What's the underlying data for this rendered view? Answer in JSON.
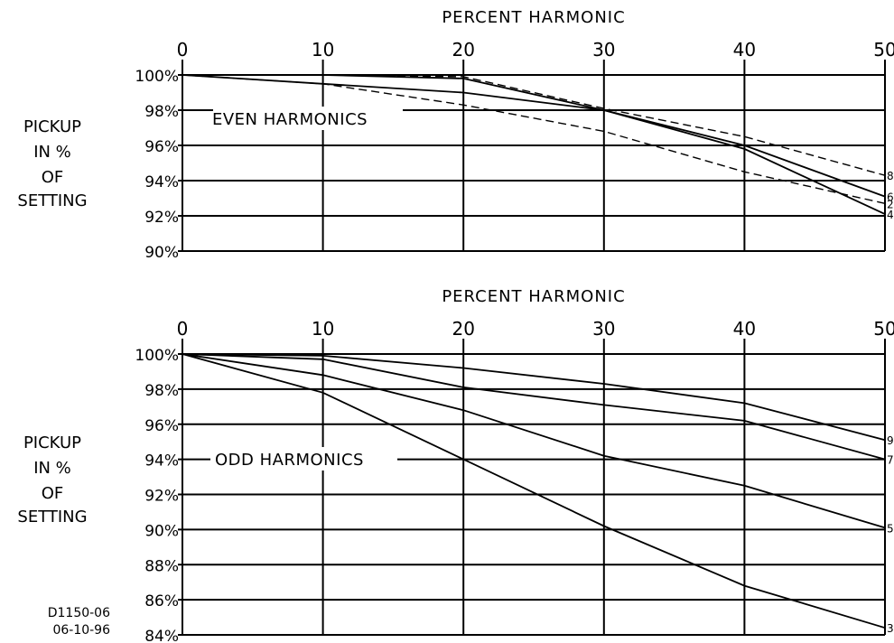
{
  "chart_data": [
    {
      "type": "line",
      "title": "EVEN HARMONICS",
      "xlabel": "PERCENT HARMONIC",
      "ylabel": "PICKUP IN % OF SETTING",
      "ylabel_lines": [
        "PICKUP",
        "IN %",
        "OF",
        "SETTING"
      ],
      "x_ticks": [
        0,
        10,
        20,
        30,
        40,
        50
      ],
      "y_ticks": [
        100,
        98,
        96,
        94,
        92,
        90
      ],
      "y_tick_labels": [
        "100%",
        "98%",
        "96%",
        "94%",
        "92%",
        "90%"
      ],
      "xlim": [
        0,
        50
      ],
      "ylim": [
        90,
        100
      ],
      "grid": true,
      "series": [
        {
          "name": "2",
          "style": "dashed",
          "x": [
            0,
            10,
            20,
            30,
            40,
            50
          ],
          "y": [
            100,
            99.5,
            98.3,
            96.8,
            94.5,
            92.7
          ]
        },
        {
          "name": "4",
          "style": "solid",
          "x": [
            0,
            10,
            20,
            30,
            40,
            50
          ],
          "y": [
            100,
            99.5,
            99.0,
            98.0,
            95.8,
            92.1
          ]
        },
        {
          "name": "6",
          "style": "solid",
          "x": [
            0,
            10,
            20,
            30,
            40,
            50
          ],
          "y": [
            100,
            100,
            99.8,
            98.0,
            96.0,
            93.1
          ]
        },
        {
          "name": "8",
          "style": "dashed",
          "x": [
            0,
            10,
            20,
            30,
            40,
            50
          ],
          "y": [
            100,
            100,
            99.9,
            98.1,
            96.5,
            94.3
          ]
        }
      ]
    },
    {
      "type": "line",
      "title": "ODD HARMONICS",
      "xlabel": "PERCENT HARMONIC",
      "ylabel": "PICKUP IN % OF SETTING",
      "ylabel_lines": [
        "PICKUP",
        "IN %",
        "OF",
        "SETTING"
      ],
      "x_ticks": [
        0,
        10,
        20,
        30,
        40,
        50
      ],
      "y_ticks": [
        100,
        98,
        96,
        94,
        92,
        90,
        88,
        86,
        84
      ],
      "y_tick_labels": [
        "100%",
        "98%",
        "96%",
        "94%",
        "92%",
        "90%",
        "88%",
        "86%",
        "84%"
      ],
      "xlim": [
        0,
        50
      ],
      "ylim": [
        84,
        100
      ],
      "grid": true,
      "series": [
        {
          "name": "3",
          "style": "solid",
          "x": [
            0,
            10,
            20,
            30,
            40,
            50
          ],
          "y": [
            100,
            97.8,
            94.0,
            90.2,
            86.8,
            84.4
          ]
        },
        {
          "name": "5",
          "style": "solid",
          "x": [
            0,
            10,
            20,
            30,
            40,
            50
          ],
          "y": [
            100,
            98.8,
            96.8,
            94.2,
            92.5,
            90.1
          ]
        },
        {
          "name": "7",
          "style": "solid",
          "x": [
            0,
            10,
            20,
            30,
            40,
            50
          ],
          "y": [
            100,
            99.7,
            98.1,
            97.1,
            96.2,
            94.0
          ]
        },
        {
          "name": "9",
          "style": "solid",
          "x": [
            0,
            10,
            20,
            30,
            40,
            50
          ],
          "y": [
            100,
            99.9,
            99.2,
            98.3,
            97.2,
            95.1
          ]
        }
      ]
    }
  ],
  "drawing_id": "D1150-06",
  "drawing_date": "06-10-96"
}
